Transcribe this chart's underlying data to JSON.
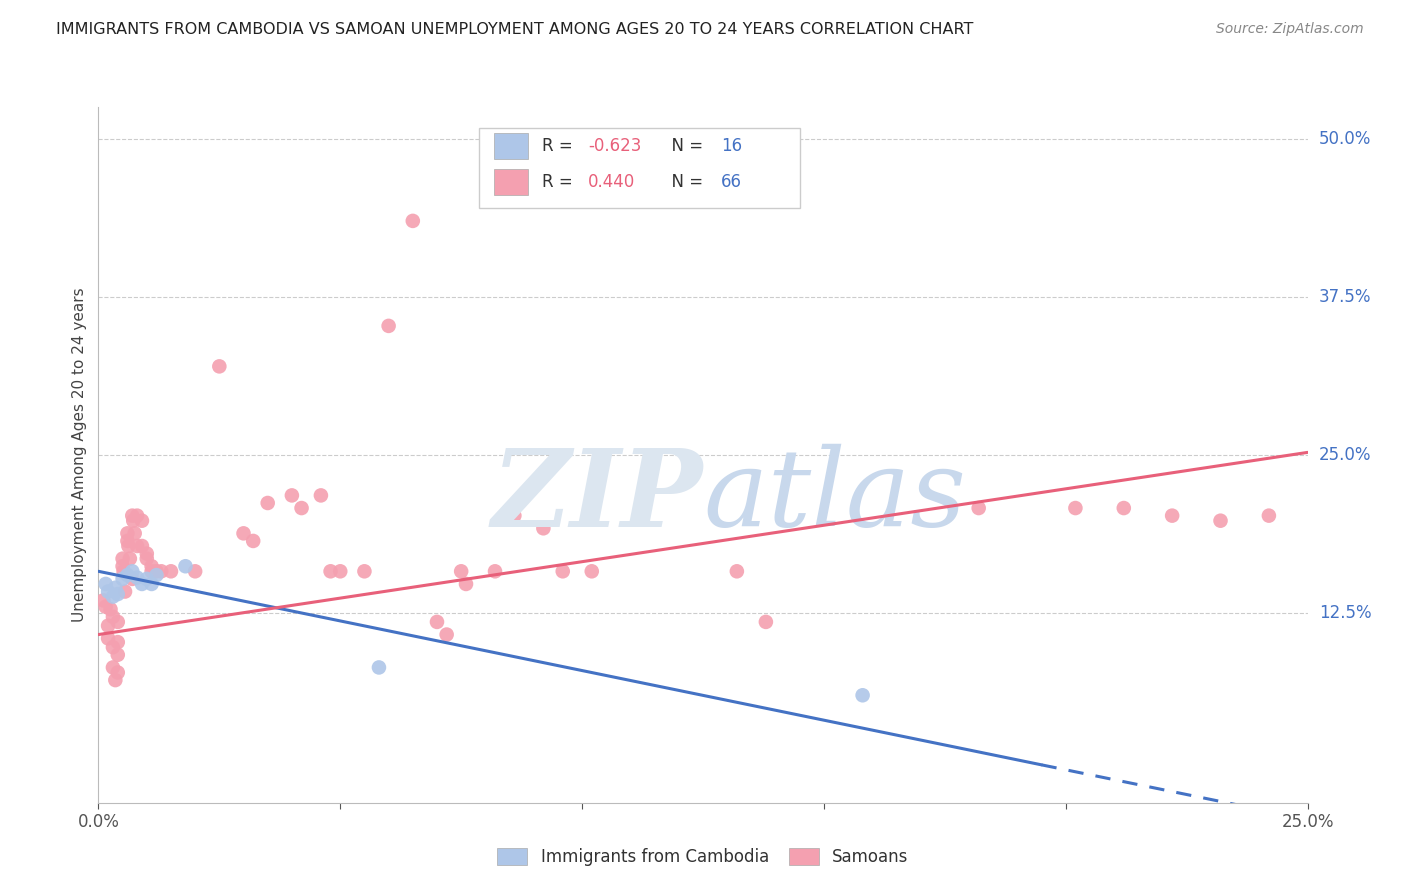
{
  "title": "IMMIGRANTS FROM CAMBODIA VS SAMOAN UNEMPLOYMENT AMONG AGES 20 TO 24 YEARS CORRELATION CHART",
  "source": "Source: ZipAtlas.com",
  "ylabel": "Unemployment Among Ages 20 to 24 years",
  "xlim": [
    0.0,
    0.25
  ],
  "ylim": [
    -0.025,
    0.525
  ],
  "xticks": [
    0.0,
    0.05,
    0.1,
    0.15,
    0.2,
    0.25
  ],
  "xtick_labels": [
    "0.0%",
    "",
    "",
    "",
    "",
    "25.0%"
  ],
  "yticks_right": [
    0.5,
    0.375,
    0.25,
    0.125
  ],
  "ytick_labels_right": [
    "50.0%",
    "37.5%",
    "25.0%",
    "12.5%"
  ],
  "bg_color": "#ffffff",
  "cambodia_color": "#aec6e8",
  "samoan_color": "#f4a0b0",
  "line_cambodia_color": "#4472c4",
  "line_samoan_color": "#e8607a",
  "legend_r1_text": "R = ",
  "legend_r1_val": "-0.623",
  "legend_n1_text": "N = ",
  "legend_n1_val": "16",
  "legend_r2_text": "R =  ",
  "legend_r2_val": "0.440",
  "legend_n2_text": "N = ",
  "legend_n2_val": "66",
  "cambodia_scatter": [
    [
      0.0015,
      0.148
    ],
    [
      0.002,
      0.142
    ],
    [
      0.003,
      0.138
    ],
    [
      0.0035,
      0.145
    ],
    [
      0.004,
      0.14
    ],
    [
      0.005,
      0.152
    ],
    [
      0.006,
      0.155
    ],
    [
      0.007,
      0.158
    ],
    [
      0.008,
      0.153
    ],
    [
      0.009,
      0.148
    ],
    [
      0.01,
      0.152
    ],
    [
      0.011,
      0.148
    ],
    [
      0.012,
      0.155
    ],
    [
      0.018,
      0.162
    ],
    [
      0.058,
      0.082
    ],
    [
      0.158,
      0.06
    ]
  ],
  "samoan_scatter": [
    [
      0.001,
      0.135
    ],
    [
      0.0015,
      0.13
    ],
    [
      0.002,
      0.105
    ],
    [
      0.002,
      0.115
    ],
    [
      0.0025,
      0.128
    ],
    [
      0.003,
      0.122
    ],
    [
      0.003,
      0.098
    ],
    [
      0.003,
      0.082
    ],
    [
      0.0035,
      0.072
    ],
    [
      0.004,
      0.118
    ],
    [
      0.004,
      0.102
    ],
    [
      0.004,
      0.092
    ],
    [
      0.004,
      0.078
    ],
    [
      0.005,
      0.168
    ],
    [
      0.005,
      0.162
    ],
    [
      0.0052,
      0.158
    ],
    [
      0.0055,
      0.142
    ],
    [
      0.006,
      0.188
    ],
    [
      0.006,
      0.182
    ],
    [
      0.0062,
      0.178
    ],
    [
      0.0065,
      0.168
    ],
    [
      0.007,
      0.152
    ],
    [
      0.007,
      0.202
    ],
    [
      0.0072,
      0.198
    ],
    [
      0.0075,
      0.188
    ],
    [
      0.008,
      0.178
    ],
    [
      0.008,
      0.202
    ],
    [
      0.009,
      0.198
    ],
    [
      0.009,
      0.178
    ],
    [
      0.01,
      0.172
    ],
    [
      0.01,
      0.168
    ],
    [
      0.011,
      0.158
    ],
    [
      0.011,
      0.162
    ],
    [
      0.012,
      0.158
    ],
    [
      0.013,
      0.158
    ],
    [
      0.015,
      0.158
    ],
    [
      0.02,
      0.158
    ],
    [
      0.025,
      0.32
    ],
    [
      0.03,
      0.188
    ],
    [
      0.032,
      0.182
    ],
    [
      0.035,
      0.212
    ],
    [
      0.04,
      0.218
    ],
    [
      0.042,
      0.208
    ],
    [
      0.046,
      0.218
    ],
    [
      0.048,
      0.158
    ],
    [
      0.05,
      0.158
    ],
    [
      0.055,
      0.158
    ],
    [
      0.06,
      0.352
    ],
    [
      0.065,
      0.435
    ],
    [
      0.07,
      0.118
    ],
    [
      0.072,
      0.108
    ],
    [
      0.075,
      0.158
    ],
    [
      0.076,
      0.148
    ],
    [
      0.082,
      0.158
    ],
    [
      0.086,
      0.202
    ],
    [
      0.092,
      0.192
    ],
    [
      0.096,
      0.158
    ],
    [
      0.102,
      0.158
    ],
    [
      0.132,
      0.158
    ],
    [
      0.138,
      0.118
    ],
    [
      0.182,
      0.208
    ],
    [
      0.202,
      0.208
    ],
    [
      0.212,
      0.208
    ],
    [
      0.222,
      0.202
    ],
    [
      0.232,
      0.198
    ],
    [
      0.242,
      0.202
    ]
  ],
  "cambodia_line_solid": [
    [
      0.0,
      0.158
    ],
    [
      0.195,
      0.005
    ]
  ],
  "cambodia_line_dashed": [
    [
      0.195,
      0.005
    ],
    [
      0.25,
      -0.038
    ]
  ],
  "samoan_line": [
    [
      0.0,
      0.108
    ],
    [
      0.25,
      0.252
    ]
  ]
}
